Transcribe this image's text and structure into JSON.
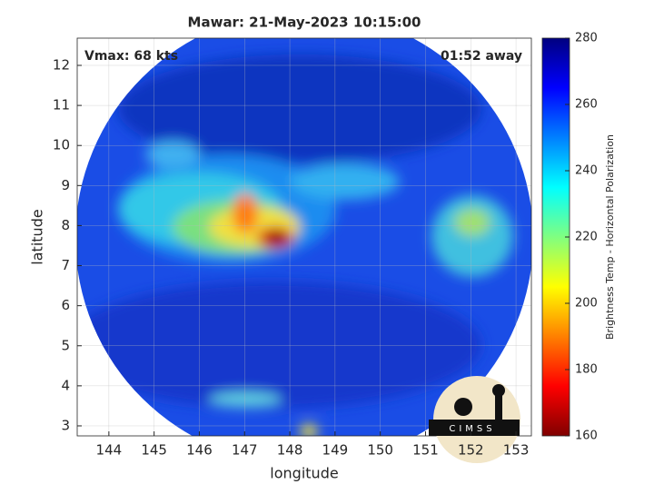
{
  "chart_data": {
    "type": "image",
    "title": "Mawar: 21-May-2023 10:15:00",
    "annotations": [
      "Vmax: 68 kts",
      "01:52 away"
    ],
    "x_label": "longitude",
    "y_label": "latitude",
    "xlim": [
      143.3,
      153.34
    ],
    "xticks": [
      144,
      145,
      146,
      147,
      148,
      149,
      150,
      151,
      152,
      153
    ],
    "ylim": [
      2.75,
      12.68
    ],
    "yticks": [
      3,
      4,
      5,
      6,
      7,
      8,
      9,
      10,
      11,
      12
    ],
    "grid": true,
    "colorbar": {
      "label": "Brightness Temp - Horizontal Polarization",
      "lim": [
        160,
        280
      ],
      "ticks": [
        160,
        180,
        200,
        220,
        240,
        260,
        280
      ],
      "colormap": [
        "#800000",
        "#ff0000",
        "#ff8000",
        "#ffff00",
        "#80ff80",
        "#00ffff",
        "#0080ff",
        "#0000ff",
        "#000080"
      ]
    },
    "logo": "CIMSS"
  }
}
